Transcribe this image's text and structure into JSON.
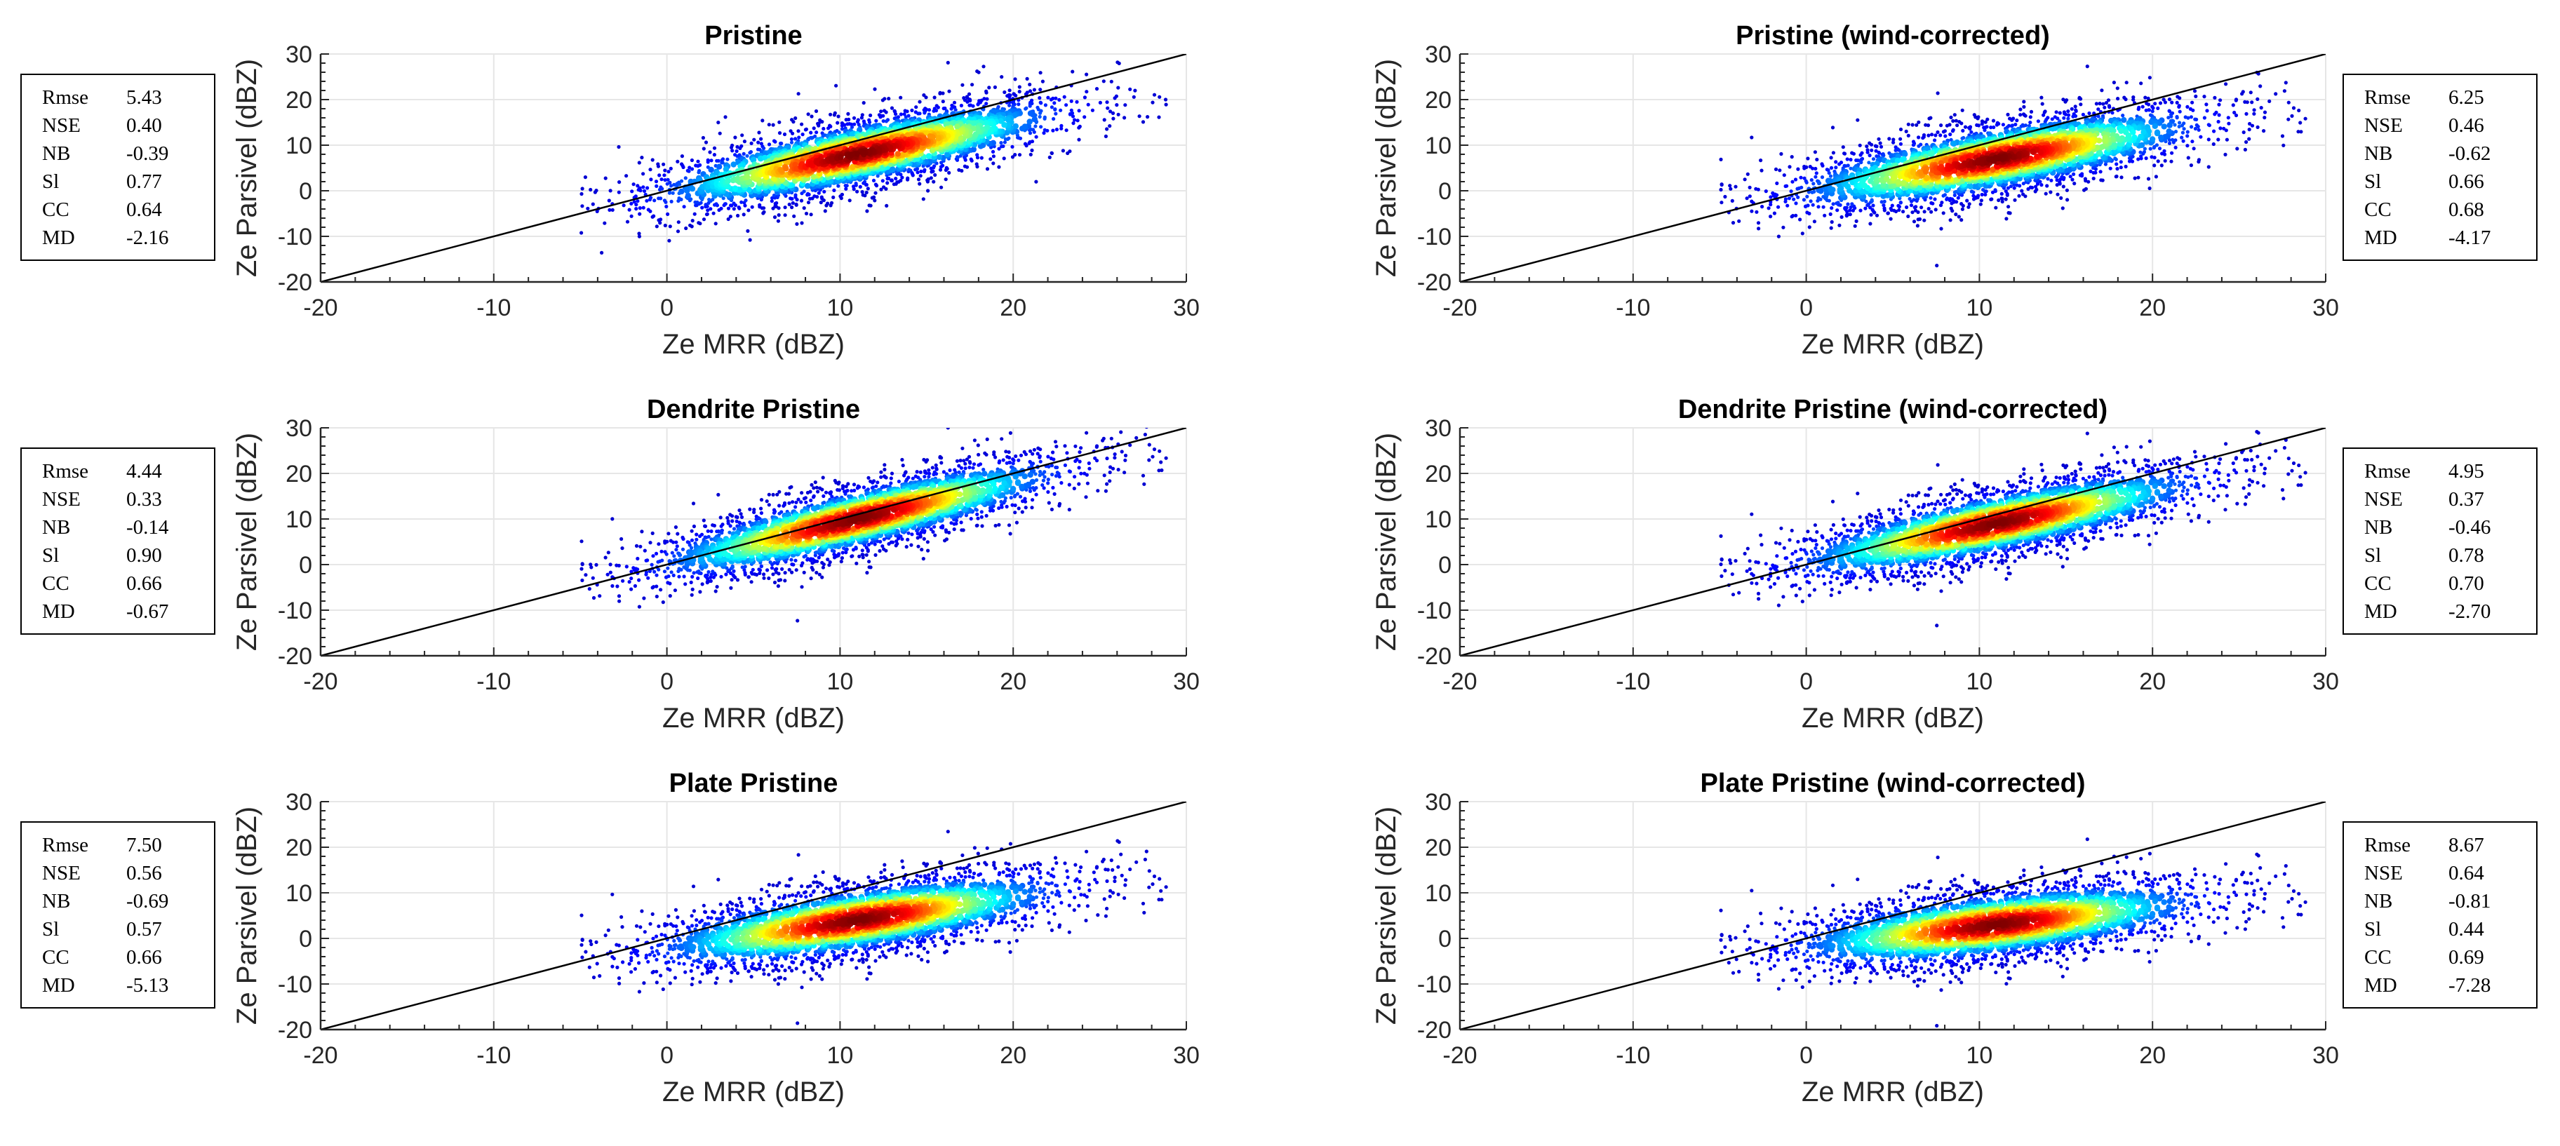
{
  "colors": {
    "scatter_colormap": "jet",
    "one_to_one_line": "#000000",
    "grid": "#e6e6e6"
  },
  "chart_data": [
    {
      "type": "scatter",
      "title": "Pristine",
      "xlabel": "Ze MRR (dBZ)",
      "ylabel": "Ze Parsivel (dBZ)",
      "xlim": [
        -20,
        30
      ],
      "ylim": [
        -20,
        30
      ],
      "xticks": [
        -20,
        -10,
        0,
        10,
        20,
        30
      ],
      "yticks": [
        -20,
        -10,
        0,
        10,
        20,
        30
      ],
      "grid": true,
      "reference_line": {
        "x": [
          -20,
          30
        ],
        "y": [
          -20,
          30
        ]
      },
      "density": {
        "x_min": -5,
        "x_max": 29,
        "slope": 0.77,
        "peak": [
          11,
          8
        ],
        "spread": 4.2
      },
      "stats_box_position": "left",
      "stats": [
        {
          "name": "Rmse",
          "value": "5.43"
        },
        {
          "name": "NSE",
          "value": "0.40"
        },
        {
          "name": "NB",
          "value": "-0.39"
        },
        {
          "name": "Sl",
          "value": "0.77"
        },
        {
          "name": "CC",
          "value": "0.64"
        },
        {
          "name": "MD",
          "value": "-2.16"
        }
      ]
    },
    {
      "type": "scatter",
      "title": "Pristine (wind-corrected)",
      "xlabel": "Ze MRR (dBZ)",
      "ylabel": "Ze Parsivel (dBZ)",
      "xlim": [
        -20,
        30
      ],
      "ylim": [
        -20,
        30
      ],
      "xticks": [
        -20,
        -10,
        0,
        10,
        20,
        30
      ],
      "yticks": [
        -20,
        -10,
        0,
        10,
        20,
        30
      ],
      "grid": true,
      "reference_line": {
        "x": [
          -20,
          30
        ],
        "y": [
          -20,
          30
        ]
      },
      "density": {
        "x_min": -5,
        "x_max": 29,
        "slope": 0.66,
        "peak": [
          11,
          7
        ],
        "spread": 4.4
      },
      "stats_box_position": "right",
      "stats": [
        {
          "name": "Rmse",
          "value": "6.25"
        },
        {
          "name": "NSE",
          "value": "0.46"
        },
        {
          "name": "NB",
          "value": "-0.62"
        },
        {
          "name": "Sl",
          "value": "0.66"
        },
        {
          "name": "CC",
          "value": "0.68"
        },
        {
          "name": "MD",
          "value": "-4.17"
        }
      ]
    },
    {
      "type": "scatter",
      "title": "Dendrite Pristine",
      "xlabel": "Ze MRR (dBZ)",
      "ylabel": "Ze Parsivel (dBZ)",
      "xlim": [
        -20,
        30
      ],
      "ylim": [
        -20,
        30
      ],
      "xticks": [
        -20,
        -10,
        0,
        10,
        20,
        30
      ],
      "yticks": [
        -20,
        -10,
        0,
        10,
        20,
        30
      ],
      "grid": true,
      "reference_line": {
        "x": [
          -20,
          30
        ],
        "y": [
          -20,
          30
        ]
      },
      "density": {
        "x_min": -5,
        "x_max": 29,
        "slope": 0.9,
        "peak": [
          11,
          10
        ],
        "spread": 4.0
      },
      "stats_box_position": "left",
      "stats": [
        {
          "name": "Rmse",
          "value": "4.44"
        },
        {
          "name": "NSE",
          "value": "0.33"
        },
        {
          "name": "NB",
          "value": "-0.14"
        },
        {
          "name": "Sl",
          "value": "0.90"
        },
        {
          "name": "CC",
          "value": "0.66"
        },
        {
          "name": "MD",
          "value": "-0.67"
        }
      ]
    },
    {
      "type": "scatter",
      "title": "Dendrite Pristine (wind-corrected)",
      "xlabel": "Ze MRR (dBZ)",
      "ylabel": "Ze Parsivel (dBZ)",
      "xlim": [
        -20,
        30
      ],
      "ylim": [
        -20,
        30
      ],
      "xticks": [
        -20,
        -10,
        0,
        10,
        20,
        30
      ],
      "yticks": [
        -20,
        -10,
        0,
        10,
        20,
        30
      ],
      "grid": true,
      "reference_line": {
        "x": [
          -20,
          30
        ],
        "y": [
          -20,
          30
        ]
      },
      "density": {
        "x_min": -5,
        "x_max": 29,
        "slope": 0.78,
        "peak": [
          11,
          9
        ],
        "spread": 4.1
      },
      "stats_box_position": "right",
      "stats": [
        {
          "name": "Rmse",
          "value": "4.95"
        },
        {
          "name": "NSE",
          "value": "0.37"
        },
        {
          "name": "NB",
          "value": "-0.46"
        },
        {
          "name": "Sl",
          "value": "0.78"
        },
        {
          "name": "CC",
          "value": "0.70"
        },
        {
          "name": "MD",
          "value": "-2.70"
        }
      ]
    },
    {
      "type": "scatter",
      "title": "Plate Pristine",
      "xlabel": "Ze MRR (dBZ)",
      "ylabel": "Ze Parsivel (dBZ)",
      "xlim": [
        -20,
        30
      ],
      "ylim": [
        -20,
        30
      ],
      "xticks": [
        -20,
        -10,
        0,
        10,
        20,
        30
      ],
      "yticks": [
        -20,
        -10,
        0,
        10,
        20,
        30
      ],
      "grid": true,
      "reference_line": {
        "x": [
          -20,
          30
        ],
        "y": [
          -20,
          30
        ]
      },
      "density": {
        "x_min": -5,
        "x_max": 29,
        "slope": 0.57,
        "peak": [
          11,
          4
        ],
        "spread": 4.3
      },
      "stats_box_position": "left",
      "stats": [
        {
          "name": "Rmse",
          "value": "7.50"
        },
        {
          "name": "NSE",
          "value": "0.56"
        },
        {
          "name": "NB",
          "value": "-0.69"
        },
        {
          "name": "Sl",
          "value": "0.57"
        },
        {
          "name": "CC",
          "value": "0.66"
        },
        {
          "name": "MD",
          "value": "-5.13"
        }
      ]
    },
    {
      "type": "scatter",
      "title": "Plate Pristine (wind-corrected)",
      "xlabel": "Ze MRR (dBZ)",
      "ylabel": "Ze Parsivel (dBZ)",
      "xlim": [
        -20,
        30
      ],
      "ylim": [
        -20,
        30
      ],
      "xticks": [
        -20,
        -10,
        0,
        10,
        20,
        30
      ],
      "yticks": [
        -20,
        -10,
        0,
        10,
        20,
        30
      ],
      "grid": true,
      "reference_line": {
        "x": [
          -20,
          30
        ],
        "y": [
          -20,
          30
        ]
      },
      "density": {
        "x_min": -5,
        "x_max": 29,
        "slope": 0.44,
        "peak": [
          11,
          3
        ],
        "spread": 4.3
      },
      "stats_box_position": "right",
      "stats": [
        {
          "name": "Rmse",
          "value": "8.67"
        },
        {
          "name": "NSE",
          "value": "0.64"
        },
        {
          "name": "NB",
          "value": "-0.81"
        },
        {
          "name": "Sl",
          "value": "0.44"
        },
        {
          "name": "CC",
          "value": "0.69"
        },
        {
          "name": "MD",
          "value": "-7.28"
        }
      ]
    }
  ]
}
